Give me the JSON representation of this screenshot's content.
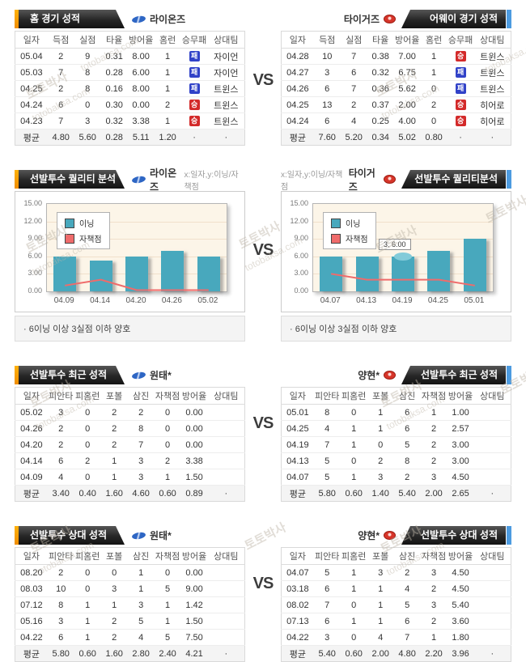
{
  "page": {
    "vs": "VS",
    "watermark_kr": "토토박사",
    "watermark_en": "totobaksa.com"
  },
  "s1": {
    "left": {
      "title": "홈 경기 성적",
      "team": "라이온즈",
      "table": {
        "headers": [
          "일자",
          "득점",
          "실점",
          "타율",
          "방어율",
          "홈런",
          "승무패",
          "상대팀"
        ],
        "rows": [
          [
            "05.04",
            "2",
            "9",
            "0.31",
            "8.00",
            "1",
            "패",
            "자이언"
          ],
          [
            "05.03",
            "7",
            "8",
            "0.28",
            "6.00",
            "1",
            "패",
            "자이언"
          ],
          [
            "04.25",
            "2",
            "8",
            "0.16",
            "8.00",
            "1",
            "패",
            "트윈스"
          ],
          [
            "04.24",
            "6",
            "0",
            "0.30",
            "0.00",
            "2",
            "승",
            "트윈스"
          ],
          [
            "04.23",
            "7",
            "3",
            "0.32",
            "3.38",
            "1",
            "승",
            "트윈스"
          ]
        ],
        "avg": [
          "평균",
          "4.80",
          "5.60",
          "0.28",
          "5.11",
          "1.20",
          "·",
          "·"
        ]
      }
    },
    "right": {
      "title": "어웨이 경기 성적",
      "team": "타이거즈",
      "table": {
        "headers": [
          "일자",
          "득점",
          "실점",
          "타율",
          "방어율",
          "홈런",
          "승무패",
          "상대팀"
        ],
        "rows": [
          [
            "04.28",
            "10",
            "7",
            "0.38",
            "7.00",
            "1",
            "승",
            "트윈스"
          ],
          [
            "04.27",
            "3",
            "6",
            "0.32",
            "6.75",
            "1",
            "패",
            "트윈스"
          ],
          [
            "04.26",
            "6",
            "7",
            "0.36",
            "5.62",
            "0",
            "패",
            "트윈스"
          ],
          [
            "04.25",
            "13",
            "2",
            "0.37",
            "2.00",
            "2",
            "승",
            "히어로"
          ],
          [
            "04.24",
            "6",
            "4",
            "0.25",
            "4.00",
            "0",
            "승",
            "히어로"
          ]
        ],
        "avg": [
          "평균",
          "7.60",
          "5.20",
          "0.34",
          "5.02",
          "0.80",
          "·",
          "·"
        ]
      }
    }
  },
  "s2": {
    "left": {
      "title": "선발투수 퀄리티 분석",
      "team": "라이온즈",
      "axis_note": "x:일자,y:이닝/자책점",
      "note": "· 6이닝 이상 3실점 이하 양호"
    },
    "right": {
      "title": "선발투수 퀄리티분석",
      "team": "타이거즈",
      "axis_note": "x:일자,y:이닝/자책점",
      "note": "· 6이닝 이상 3실점 이하 양호"
    }
  },
  "chart_data": [
    {
      "type": "bar+line",
      "title": "선발투수 퀄리티 분석 - 라이온즈",
      "xlabel": "일자",
      "ylabel": "이닝/자책점",
      "categories": [
        "04.09",
        "04.14",
        "04.20",
        "04.26",
        "05.02"
      ],
      "series": [
        {
          "name": "이닝",
          "type": "bar",
          "color": "#48a8bd",
          "values": [
            6,
            5.3,
            6,
            7,
            6
          ]
        },
        {
          "name": "자책점",
          "type": "line",
          "color": "#ef6b6b",
          "values": [
            1,
            2,
            0,
            0,
            0
          ]
        }
      ],
      "ylim": [
        0,
        15
      ],
      "yticks": [
        "15.00",
        "12.00",
        "9.00",
        "6.00",
        "3.00",
        "0.00"
      ],
      "legend_position": "top-left",
      "grid": true
    },
    {
      "type": "bar+line",
      "title": "선발투수 퀄리티분석 - 타이거즈",
      "xlabel": "일자",
      "ylabel": "이닝/자책점",
      "categories": [
        "04.07",
        "04.13",
        "04.19",
        "04.25",
        "05.01"
      ],
      "series": [
        {
          "name": "이닝",
          "type": "bar",
          "color": "#48a8bd",
          "values": [
            6,
            6,
            6,
            7,
            9
          ]
        },
        {
          "name": "자책점",
          "type": "line",
          "color": "#ef6b6b",
          "values": [
            3,
            2,
            2,
            2,
            1
          ]
        }
      ],
      "ylim": [
        0,
        15
      ],
      "yticks": [
        "15.00",
        "12.00",
        "9.00",
        "6.00",
        "3.00",
        "0.00"
      ],
      "legend_position": "top-left",
      "grid": true,
      "tooltip": {
        "index": 2,
        "label": "3, 6.00"
      }
    }
  ],
  "s3": {
    "left": {
      "title": "선발투수 최근 성적",
      "pitcher": "원태*",
      "table": {
        "headers": [
          "일자",
          "피안타",
          "피홈런",
          "포볼",
          "삼진",
          "자책점",
          "방어율",
          "상대팀"
        ],
        "rows": [
          [
            "05.02",
            "3",
            "0",
            "2",
            "2",
            "0",
            "0.00",
            ""
          ],
          [
            "04.26",
            "2",
            "0",
            "2",
            "8",
            "0",
            "0.00",
            ""
          ],
          [
            "04.20",
            "2",
            "0",
            "2",
            "7",
            "0",
            "0.00",
            ""
          ],
          [
            "04.14",
            "6",
            "2",
            "1",
            "3",
            "2",
            "3.38",
            ""
          ],
          [
            "04.09",
            "4",
            "0",
            "1",
            "3",
            "1",
            "1.50",
            ""
          ]
        ],
        "avg": [
          "평균",
          "3.40",
          "0.40",
          "1.60",
          "4.60",
          "0.60",
          "0.89",
          "·"
        ]
      }
    },
    "right": {
      "title": "선발투수 최근 성적",
      "pitcher": "양현*",
      "table": {
        "headers": [
          "일자",
          "피안타",
          "피홈런",
          "포볼",
          "삼진",
          "자책점",
          "방어율",
          "상대팀"
        ],
        "rows": [
          [
            "05.01",
            "8",
            "0",
            "1",
            "6",
            "1",
            "1.00",
            ""
          ],
          [
            "04.25",
            "4",
            "1",
            "1",
            "6",
            "2",
            "2.57",
            ""
          ],
          [
            "04.19",
            "7",
            "1",
            "0",
            "5",
            "2",
            "3.00",
            ""
          ],
          [
            "04.13",
            "5",
            "0",
            "2",
            "8",
            "2",
            "3.00",
            ""
          ],
          [
            "04.07",
            "5",
            "1",
            "3",
            "2",
            "3",
            "4.50",
            ""
          ]
        ],
        "avg": [
          "평균",
          "5.80",
          "0.60",
          "1.40",
          "5.40",
          "2.00",
          "2.65",
          "·"
        ]
      }
    }
  },
  "s4": {
    "left": {
      "title": "선발투수 상대 성적",
      "pitcher": "원태*",
      "table": {
        "headers": [
          "일자",
          "피안타",
          "피홈런",
          "포볼",
          "삼진",
          "자책점",
          "방어율",
          "상대팀"
        ],
        "rows": [
          [
            "08.20",
            "2",
            "0",
            "0",
            "1",
            "0",
            "0.00",
            ""
          ],
          [
            "08.03",
            "10",
            "0",
            "3",
            "1",
            "5",
            "9.00",
            ""
          ],
          [
            "07.12",
            "8",
            "1",
            "1",
            "3",
            "1",
            "1.42",
            ""
          ],
          [
            "05.16",
            "3",
            "1",
            "2",
            "5",
            "1",
            "1.50",
            ""
          ],
          [
            "04.22",
            "6",
            "1",
            "2",
            "4",
            "5",
            "7.50",
            ""
          ]
        ],
        "avg": [
          "평균",
          "5.80",
          "0.60",
          "1.60",
          "2.80",
          "2.40",
          "4.21",
          "·"
        ]
      }
    },
    "right": {
      "title": "선발투수 상대 성적",
      "pitcher": "양현*",
      "table": {
        "headers": [
          "일자",
          "피안타",
          "피홈런",
          "포볼",
          "삼진",
          "자책점",
          "방어율",
          "상대팀"
        ],
        "rows": [
          [
            "04.07",
            "5",
            "1",
            "3",
            "2",
            "3",
            "4.50",
            ""
          ],
          [
            "03.18",
            "6",
            "1",
            "1",
            "4",
            "2",
            "4.50",
            ""
          ],
          [
            "08.02",
            "7",
            "0",
            "1",
            "5",
            "3",
            "5.40",
            ""
          ],
          [
            "07.13",
            "6",
            "1",
            "1",
            "6",
            "2",
            "3.60",
            ""
          ],
          [
            "04.22",
            "3",
            "0",
            "4",
            "7",
            "1",
            "1.80",
            ""
          ]
        ],
        "avg": [
          "평균",
          "5.40",
          "0.60",
          "2.00",
          "4.80",
          "2.20",
          "3.96",
          "·"
        ]
      }
    }
  }
}
